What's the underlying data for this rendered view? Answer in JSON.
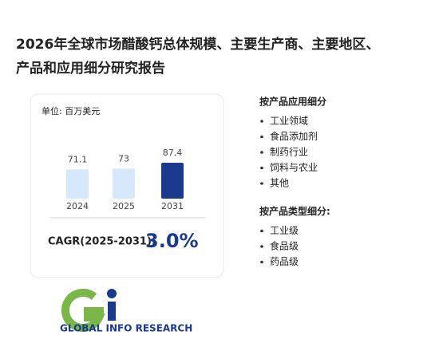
{
  "title_lines": [
    "2026年全球市场醋酸钙总体规模、主要生产商、主要地区、",
    "产品和应用细分研究报告"
  ],
  "chart_data": {
    "type": "bar",
    "unit": "单位: 百万美元",
    "categories": [
      "2024",
      "2025",
      "2031"
    ],
    "values": [
      71.1,
      73,
      87.4
    ],
    "colors": [
      "#d6e8fb",
      "#d6e8fb",
      "#1b3a8e"
    ],
    "cagr": {
      "label": "CAGR(2025-2031):",
      "value": "3.0%"
    }
  },
  "segments": [
    {
      "heading": "按产品应用细分",
      "items": [
        "工业领域",
        "食品添加剂",
        "制药行业",
        "饲料与农业",
        "其他"
      ]
    },
    {
      "heading": "按产品类型细分:",
      "items": [
        "工业级",
        "食品级",
        "药品级"
      ]
    }
  ],
  "logo": {
    "text": "GLOBAL INFO RESEARCH"
  }
}
